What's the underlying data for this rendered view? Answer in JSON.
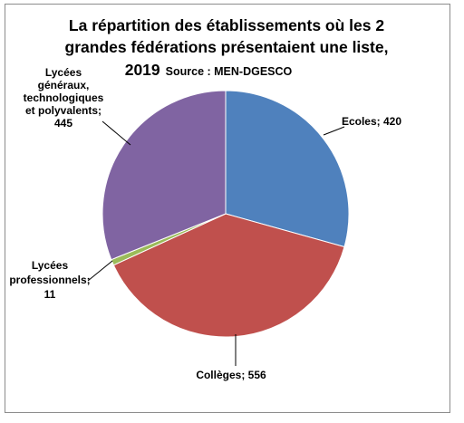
{
  "chart_data": {
    "type": "pie",
    "title_lines": [
      "La répartition des établissements où les 2",
      "grandes fédérations présentaient une liste,",
      "2019"
    ],
    "source": "Source : MEN-DGESCO",
    "start_angle_deg": 0,
    "direction": "clockwise",
    "legend": "none",
    "slices": [
      {
        "name": "Ecoles",
        "value": 420,
        "color": "#4f81bd",
        "label_lines": [
          "Ecoles; 420"
        ]
      },
      {
        "name": "Collèges",
        "value": 556,
        "color": "#c0504d",
        "label_lines": [
          "Collèges; 556"
        ]
      },
      {
        "name": "Lycées professionnels",
        "value": 11,
        "color": "#9bbb59",
        "label_lines": [
          "Lycées",
          "professionnels;",
          "11"
        ]
      },
      {
        "name": "Lycées généraux, technologiques et polyvalents",
        "value": 445,
        "color": "#8064a2",
        "label_lines": [
          "Lycées",
          "généraux,",
          "technologiques",
          "et polyvalents;",
          "445"
        ]
      }
    ]
  }
}
